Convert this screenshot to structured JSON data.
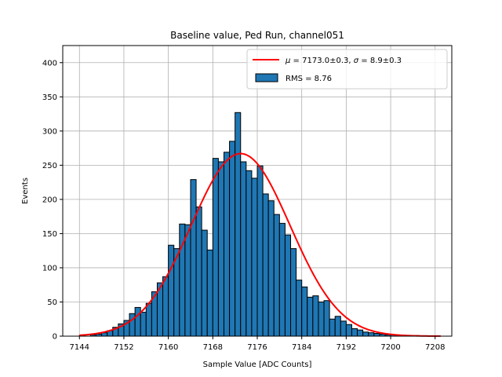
{
  "chart_data": {
    "type": "bar",
    "title": "Baseline value, Ped Run, channel051",
    "xlabel": "Sample Value [ADC Counts]",
    "ylabel": "Events",
    "xlim": [
      7141,
      7211
    ],
    "ylim": [
      0,
      425
    ],
    "xticks": [
      7144,
      7152,
      7160,
      7168,
      7176,
      7184,
      7192,
      7200,
      7208
    ],
    "yticks": [
      0,
      50,
      100,
      150,
      200,
      250,
      300,
      350,
      400
    ],
    "grid": true,
    "legend_position": "top-right",
    "bin_width": 1,
    "histogram": {
      "name": "RMS = 8.76",
      "color": "#1f77b4",
      "edgecolor": "#000000",
      "bin_left_edges": [
        7144,
        7145,
        7146,
        7147,
        7148,
        7149,
        7150,
        7151,
        7152,
        7153,
        7154,
        7155,
        7156,
        7157,
        7158,
        7159,
        7160,
        7161,
        7162,
        7163,
        7164,
        7165,
        7166,
        7167,
        7168,
        7169,
        7170,
        7171,
        7172,
        7173,
        7174,
        7175,
        7176,
        7177,
        7178,
        7179,
        7180,
        7181,
        7182,
        7183,
        7184,
        7185,
        7186,
        7187,
        7188,
        7189,
        7190,
        7191,
        7192,
        7193,
        7194,
        7195,
        7196,
        7197,
        7198,
        7199,
        7200,
        7201,
        7202,
        7203,
        7204,
        7205,
        7206,
        7207,
        7208
      ],
      "values": [
        1,
        0,
        2,
        3,
        5,
        8,
        13,
        18,
        23,
        33,
        42,
        35,
        48,
        65,
        78,
        87,
        133,
        128,
        164,
        163,
        229,
        189,
        155,
        126,
        260,
        255,
        269,
        285,
        327,
        255,
        242,
        231,
        249,
        208,
        198,
        178,
        165,
        148,
        128,
        82,
        72,
        57,
        59,
        50,
        52,
        25,
        29,
        22,
        17,
        11,
        9,
        6,
        5,
        4,
        3,
        2,
        2,
        1,
        1,
        1,
        1,
        0,
        0,
        0,
        0
      ]
    },
    "fit": {
      "name": "$\\mu = 7173.0\\pm0.3$, $\\sigma = 8.9\\pm0.3$",
      "legend_mu_label": "μ",
      "legend_mu_text": " = 7173.0±0.3, ",
      "legend_sigma_label": "σ",
      "legend_sigma_text": " = 8.9±0.3",
      "color": "#ff0000",
      "mu": 7173.0,
      "sigma": 8.9,
      "amplitude": 267,
      "x_range": [
        7144,
        7209
      ]
    }
  }
}
